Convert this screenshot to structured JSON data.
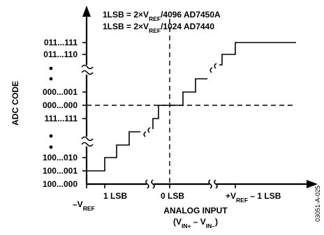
{
  "notes": [
    {
      "lhs": "1LSB",
      "eq": " = 2×V",
      "sub": "REF",
      "rhs": "/4096 AD7450A"
    },
    {
      "lhs": "1LSB",
      "eq": " = 2×V",
      "sub": "REF",
      "rhs": "/1024 AD7440"
    }
  ],
  "y_axis_title": "ADC CODE",
  "y_codes": [
    "011...111",
    "011...110",
    "000...001",
    "000...000",
    "111...111",
    "100...010",
    "100...001",
    "100...000"
  ],
  "x_labels": {
    "neg_ref_main": "–V",
    "neg_ref_sub": "REF",
    "one_lsb": "1 LSB",
    "zero_lsb": "0 LSB",
    "pos_ref_main": "+V",
    "pos_ref_sub": "REF",
    "pos_ref_tail": " – 1 LSB"
  },
  "x_axis_title": "ANALOG INPUT",
  "x_axis_expr": {
    "open": "(V",
    "sub1": "IN+",
    "mid": " – V",
    "sub2": "IN–",
    "close": ")"
  },
  "figure_id": "03051-A-025"
}
